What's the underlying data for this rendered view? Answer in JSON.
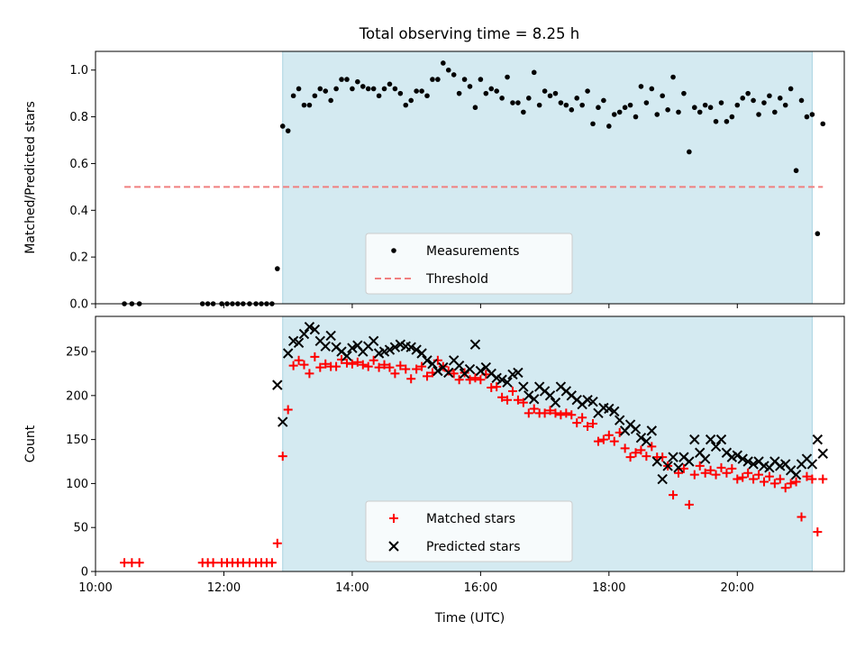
{
  "chart_data": [
    {
      "type": "scatter",
      "title": "Total observing time = 8.25 h",
      "ylabel": "Matched/Predicted stars",
      "xlabel": "",
      "ylim": [
        0,
        1.08
      ],
      "yticks": [
        "0.0",
        "0.2",
        "0.4",
        "0.6",
        "0.8",
        "1.0"
      ],
      "xlim": [
        "10:00",
        "21:40"
      ],
      "observing_window": [
        "12:55",
        "21:10"
      ],
      "window_color": "#d4eaf1",
      "legend": {
        "placement": "lower-center",
        "entries": [
          "Measurements",
          "Threshold"
        ]
      },
      "threshold": {
        "name": "Threshold",
        "value": 0.5,
        "x": [
          "10:27",
          "21:20"
        ],
        "color": "#f07f7f",
        "style": "dashed"
      },
      "series": [
        {
          "name": "Measurements",
          "color": "#000000",
          "marker": "dot",
          "x": [
            "10:27",
            "10:34",
            "10:41",
            "11:40",
            "11:45",
            "11:50",
            "11:58",
            "12:03",
            "12:08",
            "12:13",
            "12:18",
            "12:24",
            "12:30",
            "12:35",
            "12:40",
            "12:45",
            "12:50",
            "12:55",
            "13:00",
            "13:05",
            "13:10",
            "13:15",
            "13:20",
            "13:25",
            "13:30",
            "13:35",
            "13:40",
            "13:45",
            "13:50",
            "13:55",
            "14:00",
            "14:05",
            "14:10",
            "14:15",
            "14:20",
            "14:25",
            "14:30",
            "14:35",
            "14:40",
            "14:45",
            "14:50",
            "14:55",
            "15:00",
            "15:05",
            "15:10",
            "15:15",
            "15:20",
            "15:25",
            "15:30",
            "15:35",
            "15:40",
            "15:45",
            "15:50",
            "15:55",
            "16:00",
            "16:05",
            "16:10",
            "16:15",
            "16:20",
            "16:25",
            "16:30",
            "16:35",
            "16:40",
            "16:45",
            "16:50",
            "16:55",
            "17:00",
            "17:05",
            "17:10",
            "17:15",
            "17:20",
            "17:25",
            "17:30",
            "17:35",
            "17:40",
            "17:45",
            "17:50",
            "17:55",
            "18:00",
            "18:05",
            "18:10",
            "18:15",
            "18:20",
            "18:25",
            "18:30",
            "18:35",
            "18:40",
            "18:45",
            "18:50",
            "18:55",
            "19:00",
            "19:05",
            "19:10",
            "19:15",
            "19:20",
            "19:25",
            "19:30",
            "19:35",
            "19:40",
            "19:45",
            "19:50",
            "19:55",
            "20:00",
            "20:05",
            "20:10",
            "20:15",
            "20:20",
            "20:25",
            "20:30",
            "20:35",
            "20:40",
            "20:45",
            "20:50",
            "20:55",
            "21:00",
            "21:05",
            "21:10",
            "21:15",
            "21:20"
          ],
          "y": [
            0.0,
            0.0,
            0.0,
            0.0,
            0.0,
            0.0,
            0.0,
            0.0,
            0.0,
            0.0,
            0.0,
            0.0,
            0.0,
            0.0,
            0.0,
            0.0,
            0.15,
            0.76,
            0.74,
            0.89,
            0.92,
            0.85,
            0.85,
            0.89,
            0.92,
            0.91,
            0.87,
            0.92,
            0.96,
            0.96,
            0.92,
            0.95,
            0.93,
            0.92,
            0.92,
            0.89,
            0.92,
            0.94,
            0.92,
            0.9,
            0.85,
            0.87,
            0.91,
            0.91,
            0.89,
            0.96,
            0.96,
            1.03,
            1.0,
            0.98,
            0.9,
            0.96,
            0.93,
            0.84,
            0.96,
            0.9,
            0.92,
            0.91,
            0.88,
            0.97,
            0.86,
            0.86,
            0.82,
            0.88,
            0.99,
            0.85,
            0.91,
            0.89,
            0.9,
            0.86,
            0.85,
            0.83,
            0.88,
            0.85,
            0.91,
            0.77,
            0.84,
            0.87,
            0.76,
            0.81,
            0.82,
            0.84,
            0.85,
            0.8,
            0.93,
            0.86,
            0.92,
            0.81,
            0.89,
            0.83,
            0.97,
            0.82,
            0.9,
            0.65,
            0.84,
            0.82,
            0.85,
            0.84,
            0.78,
            0.86,
            0.78,
            0.8,
            0.85,
            0.88,
            0.9,
            0.87,
            0.81,
            0.86,
            0.89,
            0.82,
            0.88,
            0.85,
            0.92,
            0.57,
            0.87,
            0.8,
            0.81,
            0.3,
            0.77
          ]
        }
      ]
    },
    {
      "type": "scatter",
      "title": "",
      "ylabel": "Count",
      "xlabel": "Time (UTC)",
      "ylim": [
        0,
        290
      ],
      "yticks": [
        "0",
        "50",
        "100",
        "150",
        "200",
        "250"
      ],
      "xticks": [
        "10:00",
        "12:00",
        "14:00",
        "16:00",
        "18:00",
        "20:00"
      ],
      "xlim": [
        "10:00",
        "21:40"
      ],
      "observing_window": [
        "12:55",
        "21:10"
      ],
      "window_color": "#d4eaf1",
      "legend": {
        "placement": "lower-center",
        "entries": [
          "Matched stars",
          "Predicted stars"
        ]
      },
      "series": [
        {
          "name": "Matched stars",
          "color": "#ff0000",
          "marker": "plus",
          "x": [
            "10:27",
            "10:34",
            "10:41",
            "11:40",
            "11:45",
            "11:50",
            "11:58",
            "12:03",
            "12:08",
            "12:13",
            "12:18",
            "12:24",
            "12:30",
            "12:35",
            "12:40",
            "12:45",
            "12:50",
            "12:55",
            "13:00",
            "13:05",
            "13:10",
            "13:15",
            "13:20",
            "13:25",
            "13:30",
            "13:35",
            "13:40",
            "13:45",
            "13:50",
            "13:55",
            "14:00",
            "14:05",
            "14:10",
            "14:15",
            "14:20",
            "14:25",
            "14:30",
            "14:35",
            "14:40",
            "14:45",
            "14:50",
            "14:55",
            "15:00",
            "15:05",
            "15:10",
            "15:15",
            "15:20",
            "15:25",
            "15:30",
            "15:35",
            "15:40",
            "15:45",
            "15:50",
            "15:55",
            "16:00",
            "16:05",
            "16:10",
            "16:15",
            "16:20",
            "16:25",
            "16:30",
            "16:35",
            "16:40",
            "16:45",
            "16:50",
            "16:55",
            "17:00",
            "17:05",
            "17:10",
            "17:15",
            "17:20",
            "17:25",
            "17:30",
            "17:35",
            "17:40",
            "17:45",
            "17:50",
            "17:55",
            "18:00",
            "18:05",
            "18:10",
            "18:15",
            "18:20",
            "18:25",
            "18:30",
            "18:35",
            "18:40",
            "18:45",
            "18:50",
            "18:55",
            "19:00",
            "19:05",
            "19:10",
            "19:15",
            "19:20",
            "19:25",
            "19:30",
            "19:35",
            "19:40",
            "19:45",
            "19:50",
            "19:55",
            "20:00",
            "20:05",
            "20:10",
            "20:15",
            "20:20",
            "20:25",
            "20:30",
            "20:35",
            "20:40",
            "20:45",
            "20:50",
            "20:55",
            "21:00",
            "21:05",
            "21:10",
            "21:15",
            "21:20"
          ],
          "y": [
            10,
            10,
            10,
            10,
            10,
            10,
            10,
            10,
            10,
            10,
            10,
            10,
            10,
            10,
            10,
            10,
            32,
            131,
            184,
            234,
            240,
            235,
            225,
            244,
            232,
            236,
            233,
            233,
            241,
            237,
            236,
            238,
            235,
            233,
            240,
            232,
            235,
            232,
            225,
            234,
            230,
            219,
            230,
            233,
            222,
            226,
            240,
            233,
            228,
            225,
            218,
            226,
            218,
            220,
            218,
            224,
            209,
            210,
            198,
            195,
            205,
            195,
            192,
            180,
            185,
            180,
            180,
            183,
            180,
            178,
            180,
            178,
            169,
            175,
            165,
            168,
            148,
            150,
            155,
            148,
            158,
            140,
            130,
            135,
            138,
            131,
            142,
            130,
            130,
            120,
            87,
            112,
            117,
            76,
            110,
            120,
            112,
            115,
            110,
            118,
            112,
            117,
            105,
            107,
            112,
            105,
            110,
            102,
            108,
            100,
            105,
            95,
            100,
            102,
            62,
            108,
            105,
            45,
            105
          ]
        },
        {
          "name": "Predicted stars",
          "color": "#000000",
          "marker": "x",
          "x": [
            "12:50",
            "12:55",
            "13:00",
            "13:05",
            "13:10",
            "13:15",
            "13:20",
            "13:25",
            "13:30",
            "13:35",
            "13:40",
            "13:45",
            "13:50",
            "13:55",
            "14:00",
            "14:05",
            "14:10",
            "14:15",
            "14:20",
            "14:25",
            "14:30",
            "14:35",
            "14:40",
            "14:45",
            "14:50",
            "14:55",
            "15:00",
            "15:05",
            "15:10",
            "15:15",
            "15:20",
            "15:25",
            "15:30",
            "15:35",
            "15:40",
            "15:45",
            "15:50",
            "15:55",
            "16:00",
            "16:05",
            "16:10",
            "16:15",
            "16:20",
            "16:25",
            "16:30",
            "16:35",
            "16:40",
            "16:45",
            "16:50",
            "16:55",
            "17:00",
            "17:05",
            "17:10",
            "17:15",
            "17:20",
            "17:25",
            "17:30",
            "17:35",
            "17:40",
            "17:45",
            "17:50",
            "17:55",
            "18:00",
            "18:05",
            "18:10",
            "18:15",
            "18:20",
            "18:25",
            "18:30",
            "18:35",
            "18:40",
            "18:45",
            "18:50",
            "18:55",
            "19:00",
            "19:05",
            "19:10",
            "19:15",
            "19:20",
            "19:25",
            "19:30",
            "19:35",
            "19:40",
            "19:45",
            "19:50",
            "19:55",
            "20:00",
            "20:05",
            "20:10",
            "20:15",
            "20:20",
            "20:25",
            "20:30",
            "20:35",
            "20:40",
            "20:45",
            "20:50",
            "20:55",
            "21:00",
            "21:05",
            "21:10",
            "21:15",
            "21:20"
          ],
          "y": [
            212,
            170,
            248,
            262,
            260,
            270,
            278,
            275,
            262,
            256,
            268,
            255,
            250,
            245,
            254,
            257,
            250,
            256,
            262,
            248,
            250,
            252,
            255,
            258,
            256,
            255,
            252,
            248,
            240,
            236,
            228,
            232,
            226,
            240,
            234,
            225,
            230,
            258,
            228,
            232,
            225,
            220,
            218,
            215,
            224,
            226,
            210,
            200,
            196,
            210,
            205,
            200,
            192,
            210,
            205,
            200,
            195,
            190,
            195,
            193,
            180,
            186,
            185,
            182,
            172,
            160,
            167,
            162,
            152,
            148,
            160,
            125,
            105,
            120,
            130,
            118,
            130,
            125,
            150,
            135,
            128,
            150,
            142,
            150,
            135,
            130,
            132,
            128,
            125,
            122,
            125,
            120,
            118,
            125,
            120,
            122,
            115,
            110,
            122,
            128,
            122,
            150,
            134
          ]
        }
      ]
    }
  ]
}
